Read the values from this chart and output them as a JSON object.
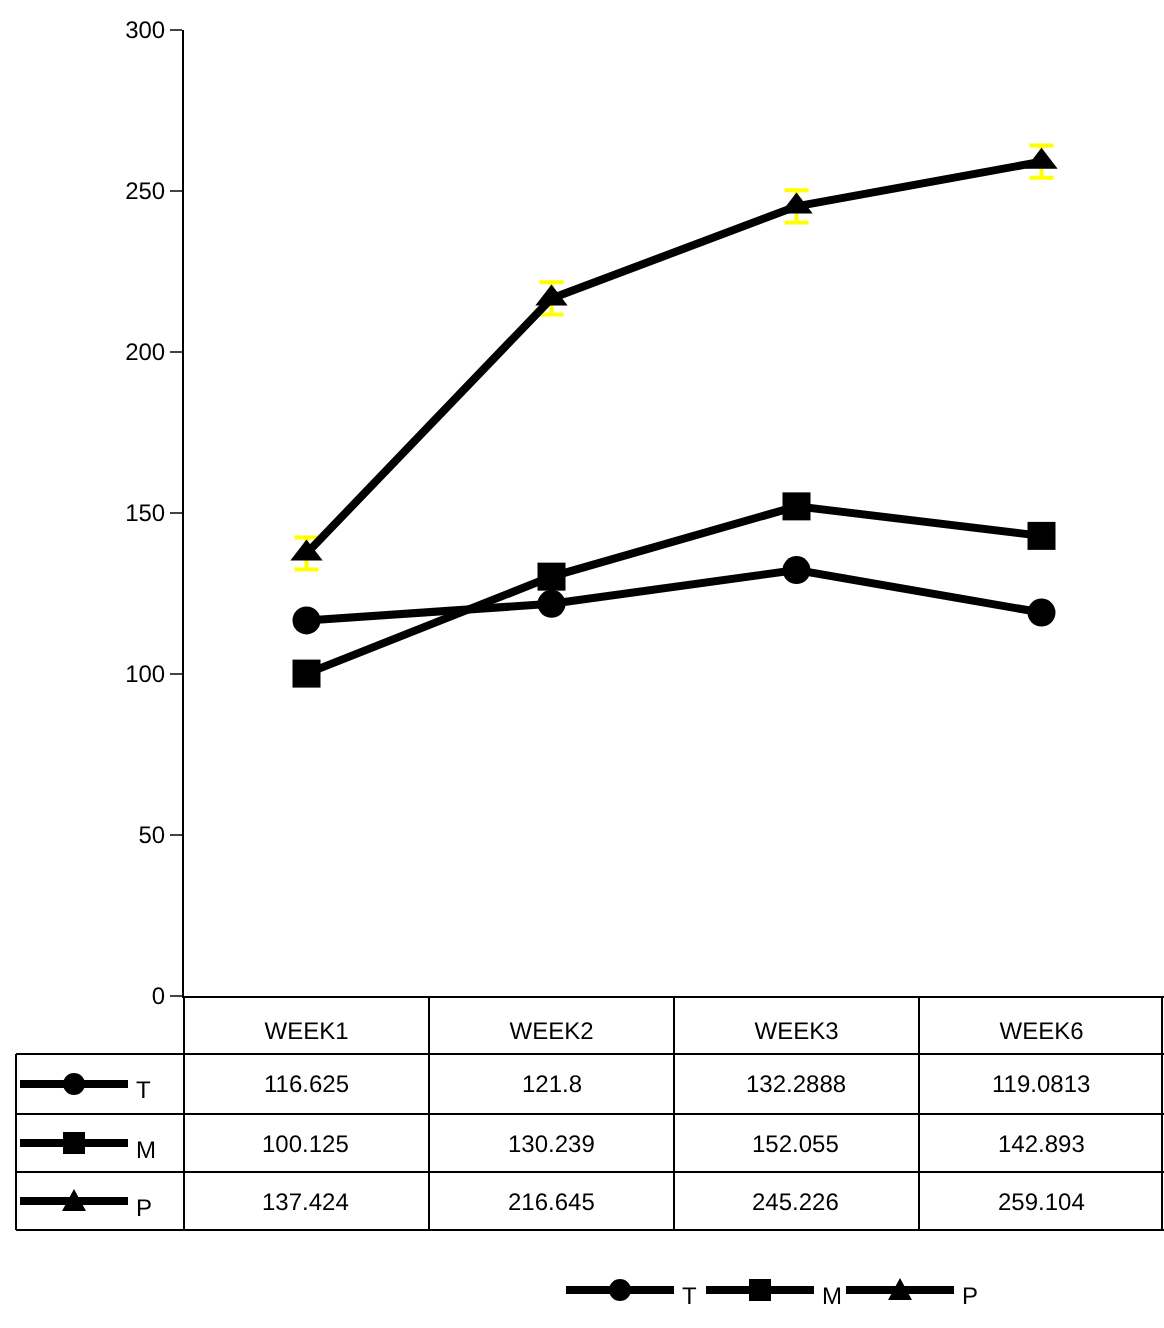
{
  "chart_data": {
    "type": "line",
    "categories": [
      "WEEK1",
      "WEEK2",
      "WEEK3",
      "WEEK6"
    ],
    "series": [
      {
        "name": "T",
        "color": "#000000",
        "marker": "circle",
        "values": [
          116.625,
          121.8,
          132.2888,
          119.0813
        ]
      },
      {
        "name": "M",
        "color": "#000000",
        "marker": "square",
        "values": [
          100.125,
          130.239,
          152.055,
          142.893
        ]
      },
      {
        "name": "P",
        "color": "#000000",
        "marker": "triangle",
        "values": [
          137.424,
          216.645,
          245.226,
          259.104
        ],
        "errors": [
          5,
          5,
          5,
          5
        ]
      }
    ],
    "ylim": [
      0,
      300
    ],
    "yticks": [
      0,
      50,
      100,
      150,
      200,
      250,
      300
    ],
    "legend": "bottom",
    "data_labels": true,
    "line_style": "solid"
  }
}
